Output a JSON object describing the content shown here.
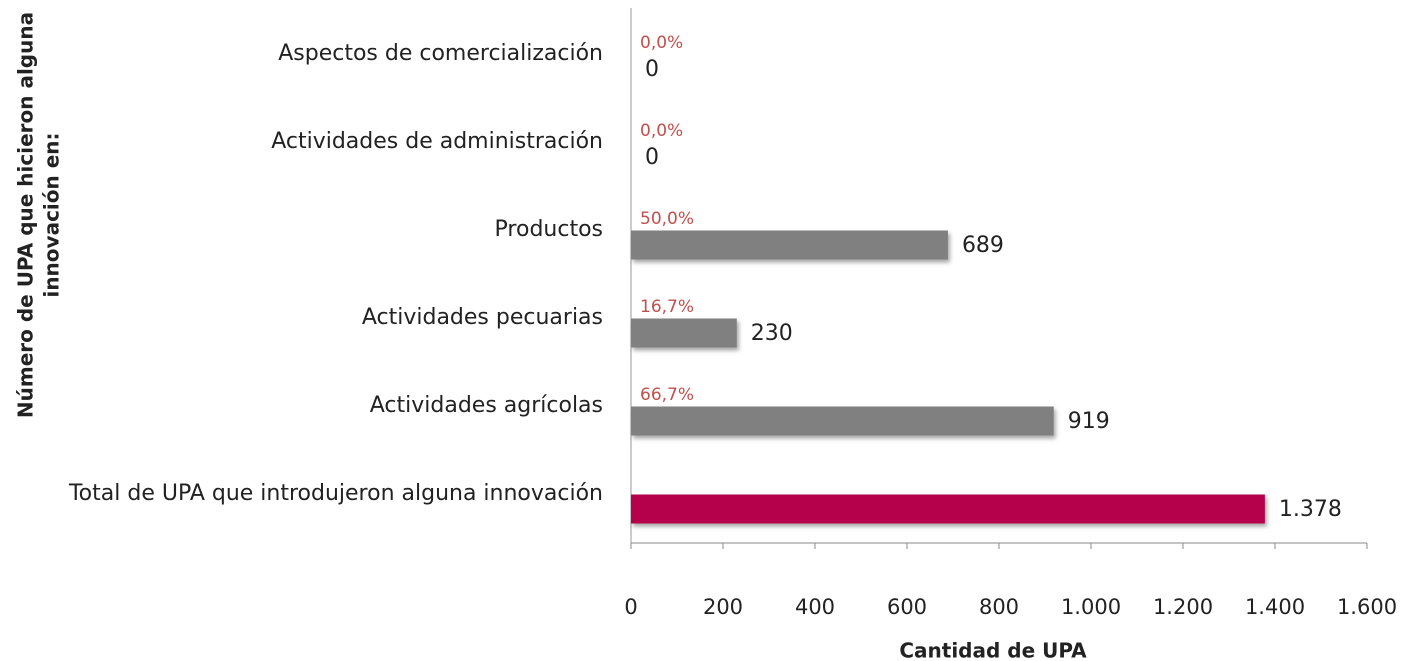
{
  "chart_data": {
    "type": "bar",
    "orientation": "horizontal",
    "categories": [
      "Aspectos de comercialización",
      "Actividades de administración",
      "Productos",
      "Actividades pecuarias",
      "Actividades agrícolas",
      "Total de UPA que introdujeron alguna innovación"
    ],
    "values": [
      0,
      0,
      689,
      230,
      919,
      1378
    ],
    "value_labels": [
      "0",
      "0",
      "689",
      "230",
      "919",
      "1.378"
    ],
    "colors": [
      "#808080",
      "#808080",
      "#808080",
      "#808080",
      "#808080",
      "#b5004b"
    ],
    "percent_labels": [
      "0,0%",
      "0,0%",
      "50,0%",
      "16,7%",
      "66,7%",
      null
    ],
    "xlim": [
      0,
      1600
    ],
    "xticks": [
      0,
      200,
      400,
      600,
      800,
      {
        "value": 1000,
        "label": "1.000"
      },
      {
        "value": 1200,
        "label": "1.200"
      },
      {
        "value": 1400,
        "label": "1.400"
      },
      {
        "value": 1600,
        "label": "1.600"
      }
    ],
    "x_label": "Cantidad de UPA",
    "y_label": [
      "Número de UPA que hicieron alguna",
      "innovación en:"
    ]
  }
}
